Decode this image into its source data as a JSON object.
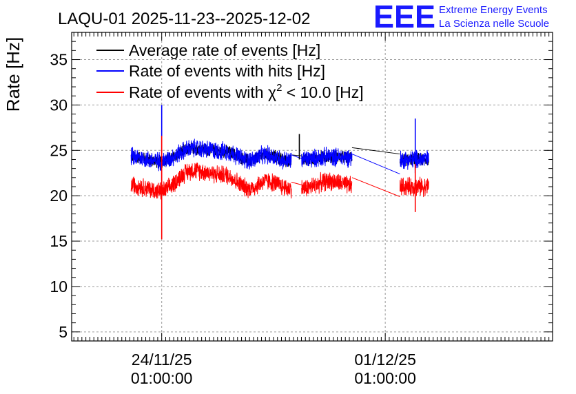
{
  "header": {
    "title": "LAQU-01 2025-11-23--2025-12-02",
    "logo_text": "EEE",
    "logo_line1": "Extreme Energy Events",
    "logo_line2": "La Scienza nelle Scuole"
  },
  "chart_data": {
    "type": "line",
    "title": "LAQU-01 2025-11-23--2025-12-02",
    "xlabel": "",
    "ylabel": "Rate [Hz]",
    "ylim": [
      4,
      38
    ],
    "xlim": [
      -1.78,
      13.28
    ],
    "x_unit": "days since 2025-11-23 00:00",
    "y_ticks": [
      5,
      10,
      15,
      20,
      25,
      30,
      35
    ],
    "x_ticks": [
      {
        "x": 1.04,
        "line1": "24/11/25",
        "line2": "01:00:00"
      },
      {
        "x": 8.04,
        "line1": "01/12/25",
        "line2": "01:00:00"
      }
    ],
    "grid": true,
    "legend_position": "top-left",
    "series": [
      {
        "name": "Average rate of events [Hz]",
        "color": "#000000",
        "noise": 0.6,
        "segments": [
          {
            "x_start": 0.08,
            "x_end": 5.1,
            "anchors": [
              [
                0.08,
                24.3
              ],
              [
                1.0,
                23.8
              ],
              [
                2.0,
                25.2
              ],
              [
                3.0,
                24.9
              ],
              [
                3.8,
                23.9
              ],
              [
                4.3,
                24.5
              ],
              [
                5.1,
                23.8
              ]
            ]
          },
          {
            "x_start": 5.1,
            "x_end": 5.42,
            "anchors": [
              [
                5.1,
                24.5
              ],
              [
                5.42,
                24.4
              ]
            ]
          },
          {
            "x_start": 5.42,
            "x_end": 7.0,
            "anchors": [
              [
                5.42,
                24.0
              ],
              [
                6.3,
                24.3
              ],
              [
                7.0,
                24.2
              ]
            ]
          },
          {
            "x_start": 7.0,
            "x_end": 8.5,
            "anchors": [
              [
                7.0,
                25.3
              ],
              [
                8.5,
                24.6
              ]
            ]
          },
          {
            "x_start": 8.5,
            "x_end": 9.4,
            "anchors": [
              [
                8.5,
                24.0
              ],
              [
                9.4,
                24.0
              ]
            ]
          }
        ]
      },
      {
        "name": "Rate of events with hits [Hz]",
        "color": "#0000ff",
        "noise": 0.9,
        "segments": [
          {
            "x_start": 0.08,
            "x_end": 5.1,
            "anchors": [
              [
                0.08,
                24.3
              ],
              [
                1.0,
                23.8
              ],
              [
                2.0,
                25.2
              ],
              [
                3.0,
                24.9
              ],
              [
                3.8,
                23.9
              ],
              [
                4.3,
                24.5
              ],
              [
                5.1,
                23.8
              ]
            ]
          },
          {
            "x_start": 5.1,
            "x_end": 5.42,
            "anchors": [
              [
                5.1,
                24.5
              ],
              [
                5.42,
                24.1
              ]
            ]
          },
          {
            "x_start": 5.42,
            "x_end": 7.0,
            "anchors": [
              [
                5.42,
                24.0
              ],
              [
                6.3,
                24.3
              ],
              [
                7.0,
                24.2
              ]
            ]
          },
          {
            "x_start": 7.0,
            "x_end": 8.5,
            "anchors": [
              [
                7.0,
                24.6
              ],
              [
                8.5,
                22.4
              ]
            ]
          },
          {
            "x_start": 8.5,
            "x_end": 9.4,
            "anchors": [
              [
                8.5,
                24.0
              ],
              [
                9.4,
                24.0
              ]
            ]
          }
        ],
        "spikes": [
          {
            "x": 1.04,
            "y_low": 21.0,
            "y_high": 30.0
          },
          {
            "x": 8.98,
            "y_low": 22.5,
            "y_high": 28.5
          }
        ]
      },
      {
        "name": "Rate of events with χ2 < 10.0 [Hz]",
        "color": "#ff0000",
        "noise": 0.9,
        "segments": [
          {
            "x_start": 0.08,
            "x_end": 5.1,
            "anchors": [
              [
                0.08,
                21.2
              ],
              [
                1.0,
                20.5
              ],
              [
                2.0,
                22.8
              ],
              [
                3.0,
                22.3
              ],
              [
                3.8,
                20.8
              ],
              [
                4.3,
                21.6
              ],
              [
                5.1,
                20.8
              ]
            ]
          },
          {
            "x_start": 5.1,
            "x_end": 5.42,
            "anchors": [
              [
                5.1,
                21.5
              ],
              [
                5.42,
                21.2
              ]
            ]
          },
          {
            "x_start": 5.42,
            "x_end": 7.0,
            "anchors": [
              [
                5.42,
                20.8
              ],
              [
                6.3,
                21.6
              ],
              [
                7.0,
                21.1
              ]
            ]
          },
          {
            "x_start": 7.0,
            "x_end": 8.5,
            "anchors": [
              [
                7.0,
                22.0
              ],
              [
                8.5,
                19.9
              ]
            ]
          },
          {
            "x_start": 8.5,
            "x_end": 9.4,
            "anchors": [
              [
                8.5,
                21.0
              ],
              [
                9.4,
                21.0
              ]
            ]
          }
        ],
        "spikes": [
          {
            "x": 1.04,
            "y_low": 15.2,
            "y_high": 26.6
          },
          {
            "x": 8.98,
            "y_low": 18.2,
            "y_high": 23.5
          }
        ]
      }
    ],
    "annotations": [
      {
        "x": 5.35,
        "y_low": 24.0,
        "y_high": 26.8,
        "series": "Average rate of events [Hz]"
      }
    ],
    "legend": [
      {
        "label": "Average rate of events [Hz]",
        "color": "#000000"
      },
      {
        "label": "Rate of events with hits [Hz]",
        "color": "#0000ff"
      },
      {
        "label_main": "Rate of events with χ",
        "label_sup": "2",
        "label_tail": " < 10.0 [Hz]",
        "color": "#ff0000"
      }
    ]
  }
}
